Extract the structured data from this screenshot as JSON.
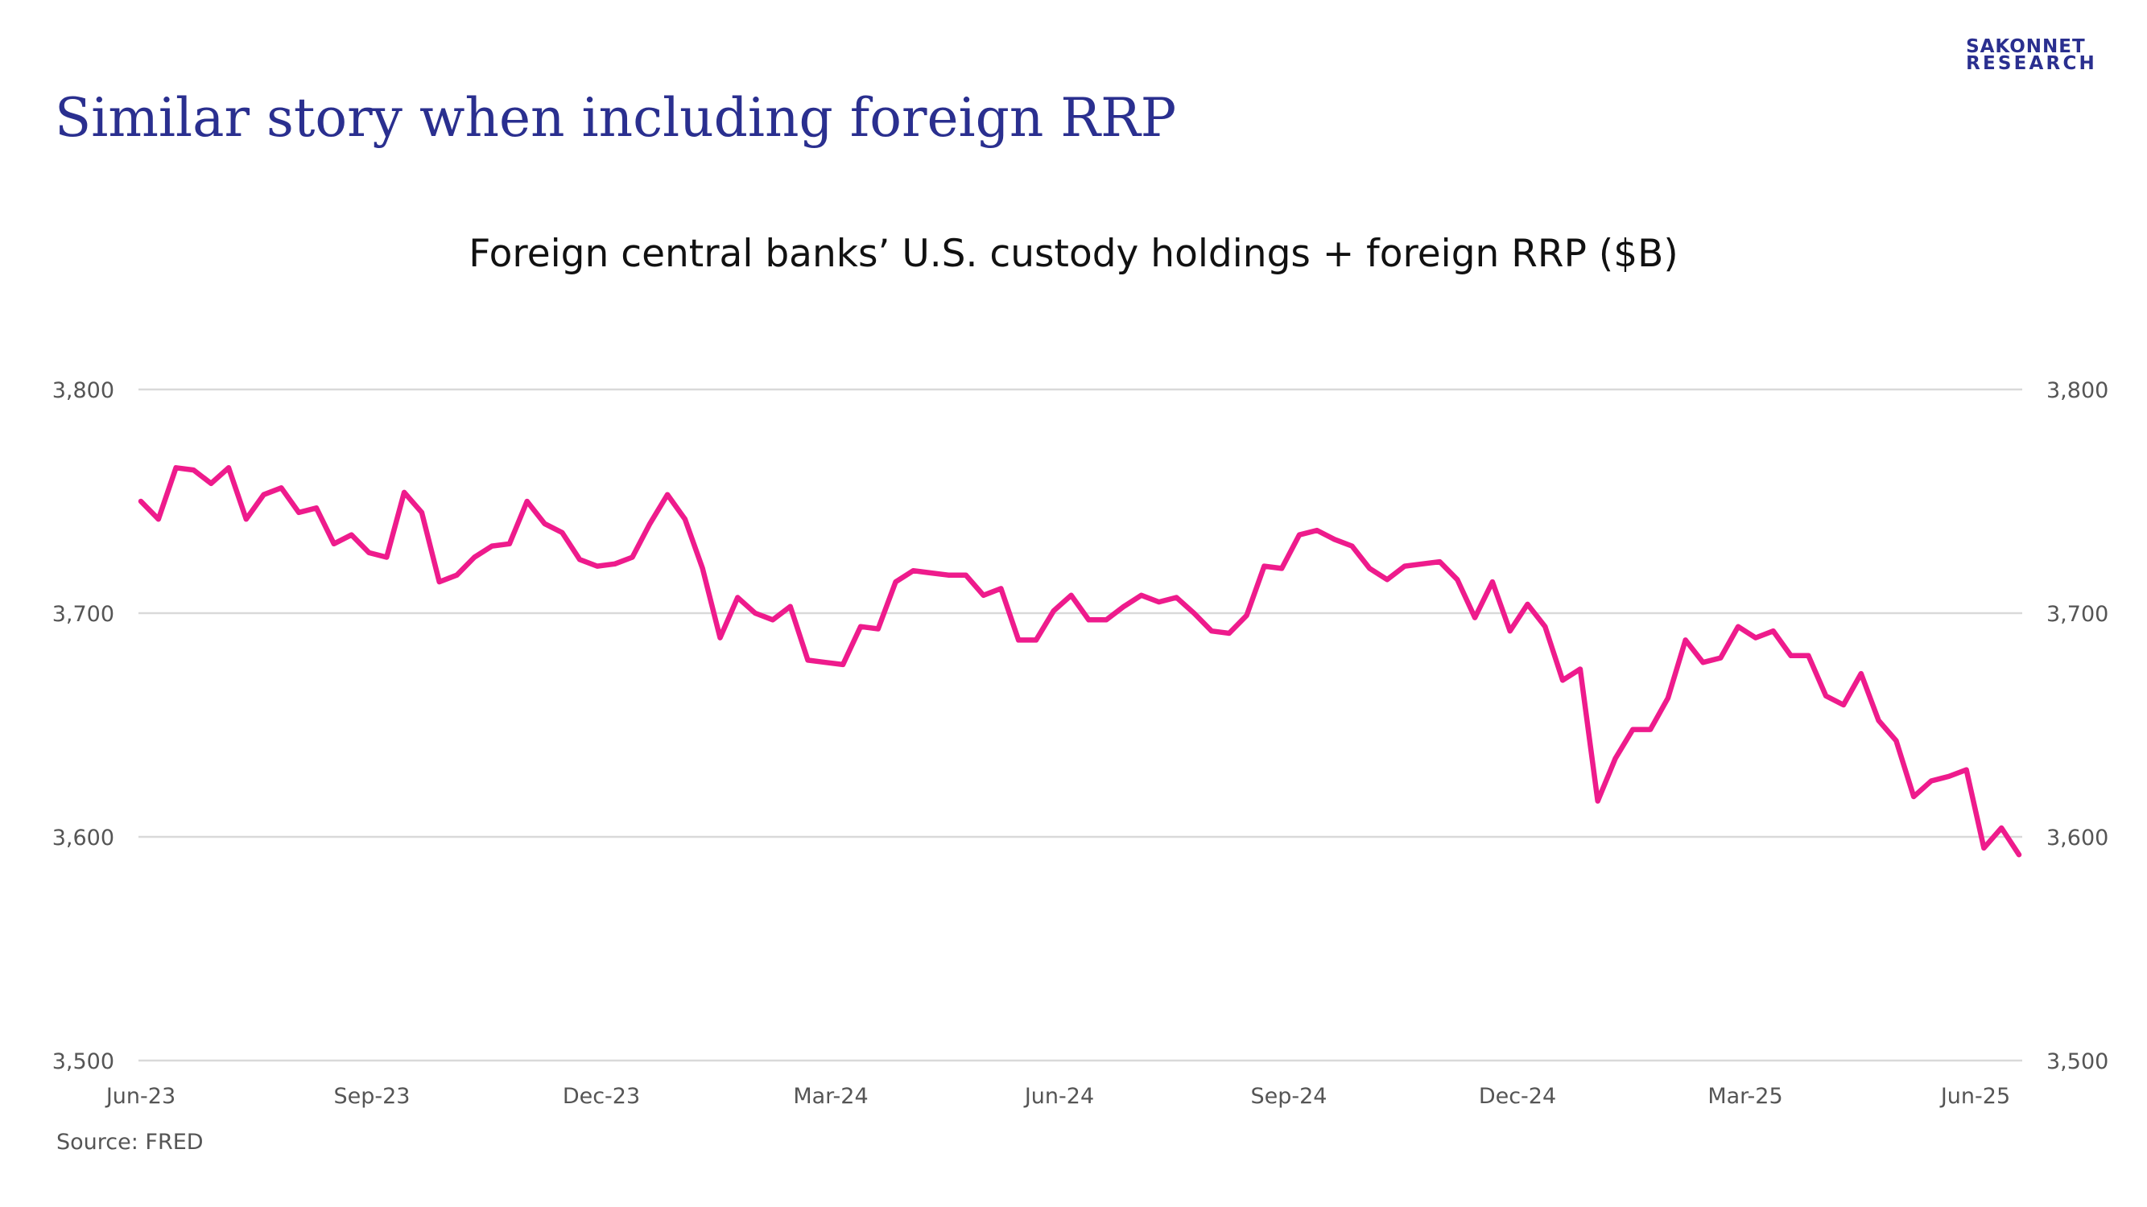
{
  "header": {
    "title": "Similar story when including foreign RRP",
    "logo_line1": "SAKONNET",
    "logo_line2": "RESEARCH"
  },
  "source": "Source: FRED",
  "colors": {
    "accent": "#2a2f8f",
    "series": "#ee1b8c",
    "grid": "#d9d9d9"
  },
  "chart_data": {
    "type": "line",
    "title": "Foreign central banks’ U.S. custody holdings + foreign RRP ($B)",
    "xlabel": "",
    "ylabel": "",
    "ylim": [
      3500,
      3800
    ],
    "yticks": [
      3500,
      3600,
      3700,
      3800
    ],
    "ytick_labels": [
      "3,500",
      "3,600",
      "3,700",
      "3,800"
    ],
    "secondary_axis_mirror": true,
    "grid": true,
    "legend": "none",
    "x_tick_labels": [
      "Jun-23",
      "Sep-23",
      "Dec-23",
      "Mar-24",
      "Jun-24",
      "Sep-24",
      "Dec-24",
      "Mar-25",
      "Jun-25"
    ],
    "series": [
      {
        "values": [
          3750,
          3742,
          3765,
          3764,
          3758,
          3765,
          3742,
          3753,
          3756,
          3745,
          3747,
          3731,
          3735,
          3727,
          3725,
          3754,
          3745,
          3714,
          3717,
          3725,
          3730,
          3731,
          3750,
          3740,
          3736,
          3724,
          3721,
          3722,
          3725,
          3740,
          3753,
          3742,
          3720,
          3689,
          3707,
          3700,
          3697,
          3703,
          3679,
          3678,
          3677,
          3694,
          3693,
          3714,
          3719,
          3718,
          3717,
          3717,
          3708,
          3711,
          3688,
          3688,
          3701,
          3708,
          3697,
          3697,
          3703,
          3708,
          3705,
          3707,
          3700,
          3692,
          3691,
          3699,
          3721,
          3720,
          3735,
          3737,
          3733,
          3730,
          3720,
          3715,
          3721,
          3722,
          3723,
          3715,
          3698,
          3714,
          3692,
          3704,
          3694,
          3670,
          3675,
          3616,
          3635,
          3648,
          3648,
          3662,
          3688,
          3678,
          3680,
          3694,
          3689,
          3692,
          3681,
          3681,
          3663,
          3659,
          3673,
          3652,
          3643,
          3618,
          3625,
          3627,
          3630,
          3595,
          3604,
          3592
        ]
      }
    ]
  }
}
